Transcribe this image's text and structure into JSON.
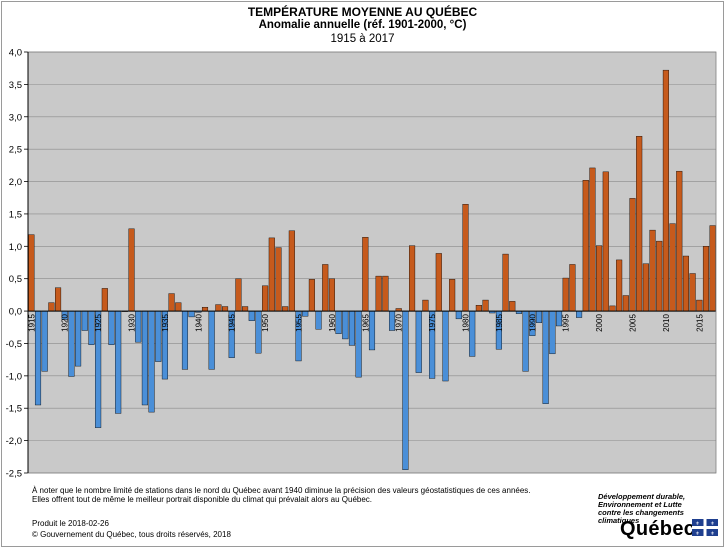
{
  "title": "TEMPÉRATURE MOYENNE AU QUÉBEC",
  "subtitle": "Anomalie annuelle (réf. 1901-2000, °C)",
  "period": "1915 à 2017",
  "notes": [
    "À noter que le nombre limité de stations dans le nord du Québec avant 1940 diminue la précision des valeurs géostatistiques de ces années.",
    "Elles offrent tout de même le meilleur portrait disponible du climat qui prévalait alors au Québec."
  ],
  "produced": "Produit le 2018-02-26",
  "copyright": "© Gouvernement du Québec, tous droits réservés, 2018",
  "org_lines": [
    "Développement durable,",
    "Environnement et Lutte",
    "contre les changements",
    "climatiques"
  ],
  "logo_text": "Québec",
  "colors": {
    "positive": "#c65a1c",
    "negative": "#4a8fd8",
    "plot_bg": "#c9c9c9"
  },
  "chart_data": {
    "type": "bar",
    "title": "TEMPÉRATURE MOYENNE AU QUÉBEC",
    "subtitle": "Anomalie annuelle (réf. 1901-2000, °C)",
    "ylim": [
      -2.5,
      4.0
    ],
    "yticks": [
      "4,0",
      "3,5",
      "3,0",
      "2,5",
      "2,0",
      "1,5",
      "1,0",
      "0,5",
      "0,0",
      "-0,5",
      "-1,0",
      "-1,5",
      "-2,0",
      "-2,5"
    ],
    "ytick_values": [
      4.0,
      3.5,
      3.0,
      2.5,
      2.0,
      1.5,
      1.0,
      0.5,
      0.0,
      -0.5,
      -1.0,
      -1.5,
      -2.0,
      -2.5
    ],
    "xtick_labels": [
      "1915",
      "1920",
      "1925",
      "1930",
      "1935",
      "1940",
      "1945",
      "1950",
      "1955",
      "1960",
      "1965",
      "1970",
      "1975",
      "1980",
      "1985",
      "1990",
      "1995",
      "2000",
      "2005",
      "2010",
      "2015"
    ],
    "xtick_years": [
      1915,
      1920,
      1925,
      1930,
      1935,
      1940,
      1945,
      1950,
      1955,
      1960,
      1965,
      1970,
      1975,
      1980,
      1985,
      1990,
      1995,
      2000,
      2005,
      2010,
      2015
    ],
    "grid": true,
    "x": [
      1915,
      1916,
      1917,
      1918,
      1919,
      1920,
      1921,
      1922,
      1923,
      1924,
      1925,
      1926,
      1927,
      1928,
      1929,
      1930,
      1931,
      1932,
      1933,
      1934,
      1935,
      1936,
      1937,
      1938,
      1939,
      1940,
      1941,
      1942,
      1943,
      1944,
      1945,
      1946,
      1947,
      1948,
      1949,
      1950,
      1951,
      1952,
      1953,
      1954,
      1955,
      1956,
      1957,
      1958,
      1959,
      1960,
      1961,
      1962,
      1963,
      1964,
      1965,
      1966,
      1967,
      1968,
      1969,
      1970,
      1971,
      1972,
      1973,
      1974,
      1975,
      1976,
      1977,
      1978,
      1979,
      1980,
      1981,
      1982,
      1983,
      1984,
      1985,
      1986,
      1987,
      1988,
      1989,
      1990,
      1991,
      1992,
      1993,
      1994,
      1995,
      1996,
      1997,
      1998,
      1999,
      2000,
      2001,
      2002,
      2003,
      2004,
      2005,
      2006,
      2007,
      2008,
      2009,
      2010,
      2011,
      2012,
      2013,
      2014,
      2015,
      2016,
      2017
    ],
    "values": [
      1.18,
      -1.45,
      -0.93,
      0.13,
      0.36,
      -0.13,
      -1.01,
      -0.85,
      -0.3,
      -0.52,
      -1.8,
      0.35,
      -0.52,
      -1.58,
      0.0,
      1.27,
      -0.48,
      -1.45,
      -1.56,
      -0.78,
      -1.05,
      0.27,
      0.13,
      -0.9,
      -0.09,
      -0.02,
      0.06,
      -0.9,
      0.1,
      0.07,
      -0.72,
      0.5,
      0.07,
      -0.15,
      -0.65,
      0.39,
      1.13,
      0.98,
      0.07,
      1.24,
      -0.77,
      -0.08,
      0.49,
      -0.28,
      0.72,
      0.5,
      -0.35,
      -0.43,
      -0.53,
      -1.02,
      1.14,
      -0.6,
      0.54,
      0.54,
      -0.3,
      0.04,
      -2.45,
      1.01,
      -0.95,
      0.17,
      -1.04,
      0.89,
      -1.08,
      0.49,
      -0.12,
      1.65,
      -0.7,
      0.09,
      0.17,
      -0.03,
      -0.59,
      0.88,
      0.15,
      -0.04,
      -0.93,
      -0.38,
      -0.18,
      -1.43,
      -0.66,
      -0.23,
      0.51,
      0.72,
      -0.1,
      2.02,
      2.21,
      1.01,
      2.15,
      0.08,
      0.79,
      0.24,
      1.74,
      2.7,
      0.73,
      1.25,
      1.08,
      3.72,
      1.35,
      2.16,
      0.85,
      0.58,
      0.17,
      1.0,
      1.32
    ]
  }
}
